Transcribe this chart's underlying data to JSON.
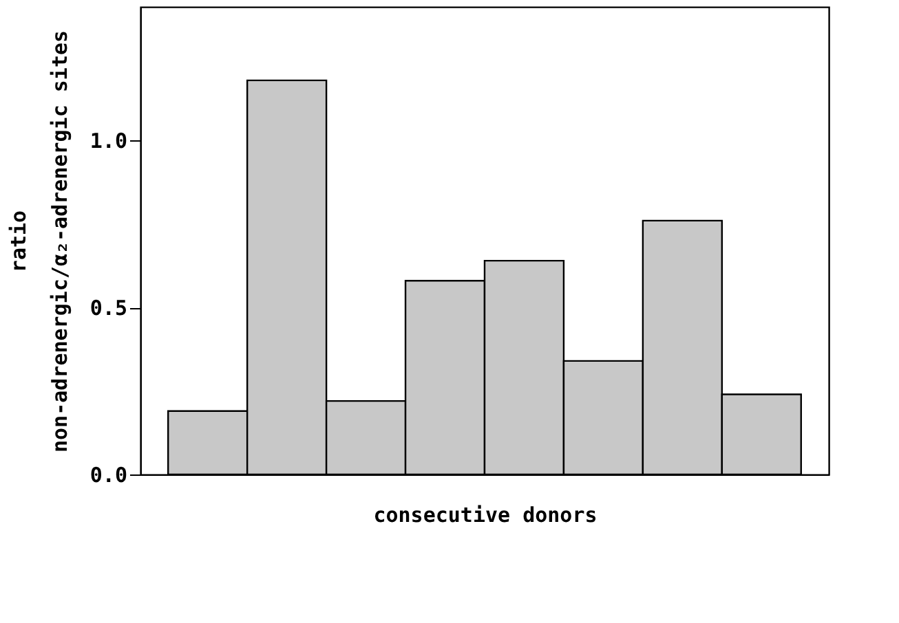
{
  "chart_data": {
    "type": "bar",
    "xlabel": "consecutive donors",
    "ylabel": "ratio\nnon-adrenergic/α₂-adrenergic sites",
    "categories": [
      null,
      null,
      null,
      null,
      null,
      null,
      null,
      null
    ],
    "values": [
      0.19,
      1.18,
      0.22,
      0.58,
      0.64,
      0.34,
      0.76,
      0.24
    ],
    "color": "#c8c8c8",
    "ylim": [
      0,
      1.4
    ],
    "yticks": [
      {
        "value": 0,
        "label": "0.0"
      },
      {
        "value": 0.5,
        "label": "0.5"
      },
      {
        "value": 1,
        "label": "1.0"
      }
    ],
    "grid": false,
    "tick_labels": "y"
  }
}
